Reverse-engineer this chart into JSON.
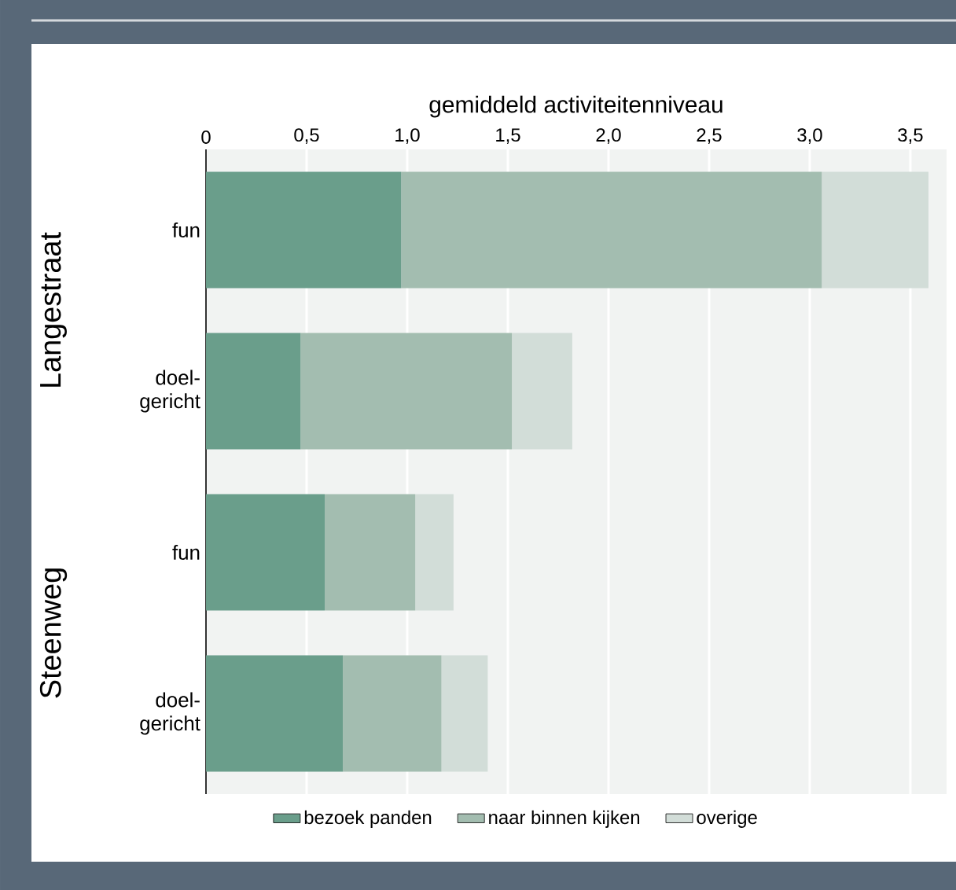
{
  "chart_data": {
    "type": "bar",
    "orientation": "horizontal",
    "stacked": true,
    "xlabel": "gemiddeld activiteitenniveau",
    "categories": [
      "fun",
      "doel-gericht",
      "fun",
      "doel-gericht"
    ],
    "annotations": [
      "Langestraat",
      "Steenweg"
    ],
    "series": [
      {
        "name": "bezoek panden",
        "color": "#6a9e8b",
        "values": [
          0.97,
          0.47,
          0.59,
          0.68
        ]
      },
      {
        "name": "naar binnen kijken",
        "color": "#a3bdb0",
        "values": [
          2.09,
          1.05,
          0.45,
          0.49
        ]
      },
      {
        "name": "overige",
        "color": "#d2ddd8",
        "values": [
          0.53,
          0.3,
          0.19,
          0.23
        ]
      }
    ],
    "xlim": [
      0,
      3.68
    ],
    "xticks": [
      0,
      {
        "value": 0.5,
        "label": "0,5"
      },
      {
        "value": 1.0,
        "label": "1,0"
      },
      {
        "value": 1.5,
        "label": "1,5"
      },
      {
        "value": 2.0,
        "label": "2,0"
      },
      {
        "value": 2.5,
        "label": "2,5"
      },
      {
        "value": 3.0,
        "label": "3,0"
      },
      {
        "value": 3.5,
        "label": "3,5"
      }
    ],
    "grid": "x",
    "legend": "bottom"
  }
}
